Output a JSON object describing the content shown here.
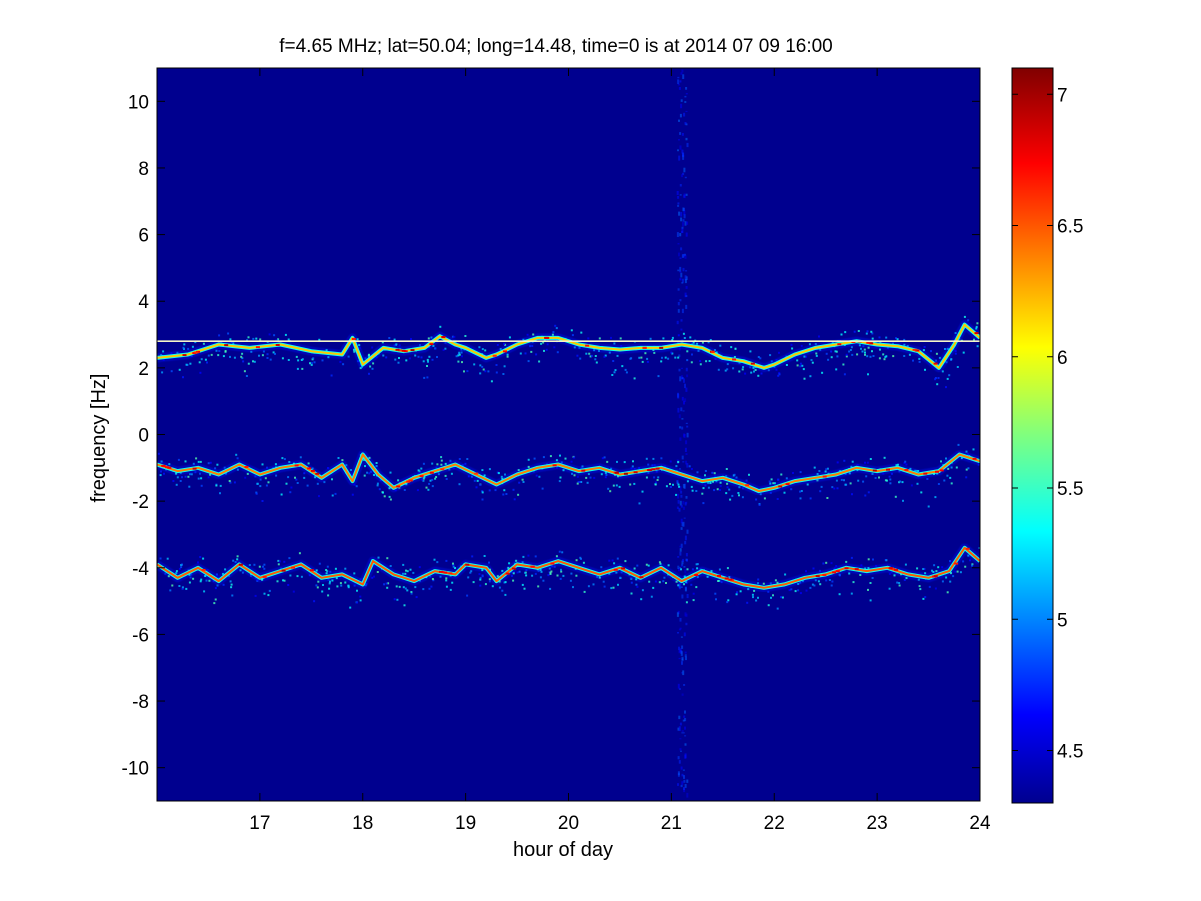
{
  "chart_data": {
    "type": "heatmap",
    "title": "f=4.65 MHz;  lat=50.04; long=14.48, time=0 is at 2014 07 09 16:00",
    "xlabel": "hour of day",
    "ylabel": "frequency [Hz]",
    "xlim": [
      16,
      24
    ],
    "ylim": [
      -11,
      11
    ],
    "xticks": [
      "17",
      "18",
      "19",
      "20",
      "21",
      "22",
      "23",
      "24"
    ],
    "yticks": [
      "-10",
      "-8",
      "-6",
      "-4",
      "-2",
      "0",
      "2",
      "4",
      "6",
      "8",
      "10"
    ],
    "colorbar": {
      "colormap": "jet",
      "range": [
        4.3,
        7.1
      ],
      "ticks": [
        "4.5",
        "5",
        "5.5",
        "6",
        "6.5",
        "7"
      ]
    },
    "background_value": 4.3,
    "reference_line": {
      "y": 2.8,
      "x_start": 16,
      "x_end": 24
    },
    "vertical_noise_band": {
      "x": 21.1
    },
    "traces": [
      {
        "x": [
          16.0,
          16.3,
          16.6,
          16.9,
          17.2,
          17.5,
          17.8,
          17.9,
          18.0,
          18.2,
          18.4,
          18.6,
          18.75,
          18.9,
          19.0,
          19.2,
          19.3,
          19.5,
          19.7,
          19.9,
          20.1,
          20.3,
          20.5,
          20.7,
          20.9,
          21.1,
          21.3,
          21.5,
          21.7,
          21.9,
          22.0,
          22.2,
          22.4,
          22.6,
          22.8,
          23.0,
          23.2,
          23.4,
          23.6,
          23.75,
          23.85,
          24.0
        ],
        "y": [
          2.3,
          2.4,
          2.7,
          2.6,
          2.7,
          2.5,
          2.4,
          2.9,
          2.1,
          2.6,
          2.5,
          2.6,
          2.95,
          2.7,
          2.6,
          2.3,
          2.4,
          2.7,
          2.9,
          2.9,
          2.7,
          2.6,
          2.55,
          2.6,
          2.6,
          2.7,
          2.6,
          2.3,
          2.2,
          2.0,
          2.1,
          2.4,
          2.6,
          2.7,
          2.8,
          2.7,
          2.65,
          2.5,
          2.0,
          2.7,
          3.3,
          2.9
        ],
        "value": 6.2
      },
      {
        "x": [
          16.0,
          16.2,
          16.4,
          16.6,
          16.8,
          17.0,
          17.2,
          17.4,
          17.6,
          17.8,
          17.9,
          18.0,
          18.15,
          18.3,
          18.5,
          18.7,
          18.9,
          19.1,
          19.3,
          19.5,
          19.7,
          19.9,
          20.1,
          20.3,
          20.5,
          20.7,
          20.9,
          21.1,
          21.3,
          21.5,
          21.7,
          21.85,
          22.0,
          22.2,
          22.4,
          22.6,
          22.8,
          23.0,
          23.2,
          23.4,
          23.6,
          23.8,
          24.0
        ],
        "y": [
          -0.9,
          -1.1,
          -1.0,
          -1.2,
          -0.9,
          -1.2,
          -1.0,
          -0.9,
          -1.3,
          -0.9,
          -1.4,
          -0.6,
          -1.2,
          -1.6,
          -1.3,
          -1.1,
          -0.9,
          -1.2,
          -1.5,
          -1.2,
          -1.0,
          -0.9,
          -1.1,
          -1.0,
          -1.2,
          -1.1,
          -1.0,
          -1.2,
          -1.4,
          -1.3,
          -1.5,
          -1.7,
          -1.6,
          -1.4,
          -1.3,
          -1.2,
          -1.0,
          -1.1,
          -1.0,
          -1.2,
          -1.1,
          -0.6,
          -0.8
        ],
        "value": 6.4
      },
      {
        "x": [
          16.0,
          16.2,
          16.4,
          16.6,
          16.8,
          17.0,
          17.2,
          17.4,
          17.6,
          17.8,
          18.0,
          18.1,
          18.3,
          18.5,
          18.7,
          18.9,
          19.0,
          19.2,
          19.3,
          19.5,
          19.7,
          19.9,
          20.1,
          20.3,
          20.5,
          20.7,
          20.9,
          21.1,
          21.3,
          21.5,
          21.7,
          21.9,
          22.1,
          22.3,
          22.5,
          22.7,
          22.9,
          23.1,
          23.3,
          23.5,
          23.7,
          23.85,
          24.0
        ],
        "y": [
          -3.9,
          -4.3,
          -4.0,
          -4.4,
          -3.9,
          -4.3,
          -4.1,
          -3.9,
          -4.3,
          -4.2,
          -4.5,
          -3.8,
          -4.2,
          -4.4,
          -4.1,
          -4.2,
          -3.9,
          -4.0,
          -4.4,
          -3.9,
          -4.0,
          -3.8,
          -4.0,
          -4.2,
          -4.0,
          -4.3,
          -4.0,
          -4.4,
          -4.1,
          -4.3,
          -4.5,
          -4.6,
          -4.5,
          -4.3,
          -4.2,
          -4.0,
          -4.1,
          -4.0,
          -4.2,
          -4.3,
          -4.1,
          -3.4,
          -3.8
        ],
        "value": 6.5
      }
    ]
  }
}
